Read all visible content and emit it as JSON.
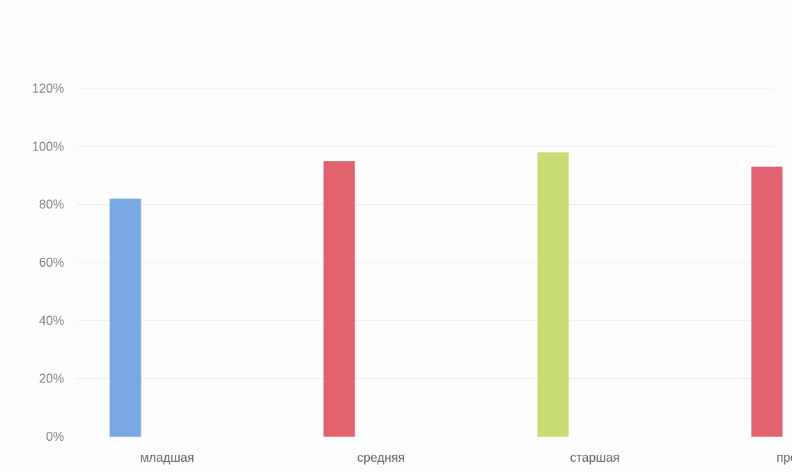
{
  "chart_data": {
    "type": "bar",
    "title": "",
    "xlabel": "",
    "ylabel": "",
    "categories": [
      "младшая",
      "средняя",
      "старшая",
      "предшкола"
    ],
    "values": [
      82,
      95,
      98,
      93
    ],
    "colors": [
      "#78a7e4",
      "#e1616e",
      "#c7dc72",
      "#e1616e"
    ],
    "ylim": [
      0,
      120
    ],
    "yticks": [
      0,
      20,
      40,
      60,
      80,
      100,
      120
    ],
    "ytick_labels": [
      "0%",
      "20%",
      "40%",
      "60%",
      "80%",
      "100%",
      "120%"
    ],
    "grid": true,
    "legend": "none"
  }
}
